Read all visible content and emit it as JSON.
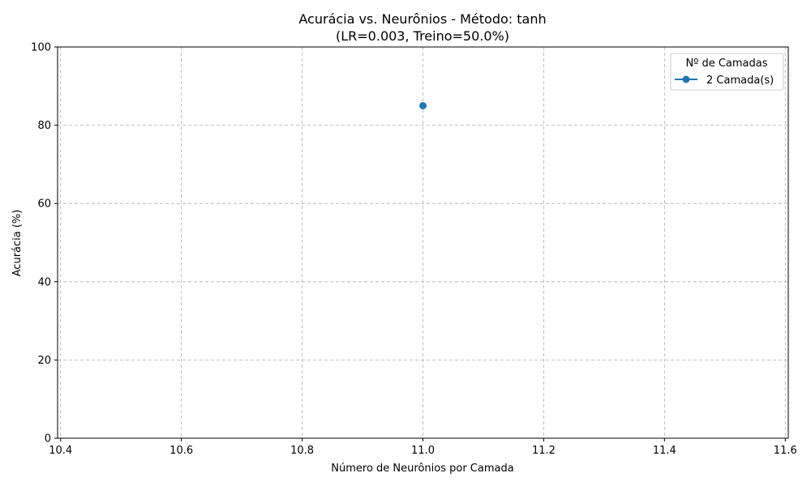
{
  "chart_data": {
    "type": "line",
    "title": "Acurácia vs. Neurônios - Método: tanh",
    "subtitle": "(LR=0.003, Treino=50.0%)",
    "xlabel": "Número de Neurônios por Camada",
    "ylabel": "Acurácia (%)",
    "xlim": [
      10.395,
      11.605
    ],
    "ylim": [
      0,
      100
    ],
    "xticks": [
      10.4,
      10.6,
      10.8,
      11.0,
      11.2,
      11.4,
      11.6
    ],
    "xtick_labels": [
      "10.4",
      "10.6",
      "10.8",
      "11.0",
      "11.2",
      "11.4",
      "11.6"
    ],
    "yticks": [
      0,
      20,
      40,
      60,
      80,
      100
    ],
    "ytick_labels": [
      "0",
      "20",
      "40",
      "60",
      "80",
      "100"
    ],
    "grid": true,
    "legend": {
      "title": "Nº de Camadas",
      "position": "top-right"
    },
    "series": [
      {
        "name": "2 Camada(s)",
        "color": "#1f77b4",
        "marker": "circle",
        "x": [
          11.0
        ],
        "y": [
          85
        ]
      }
    ]
  }
}
